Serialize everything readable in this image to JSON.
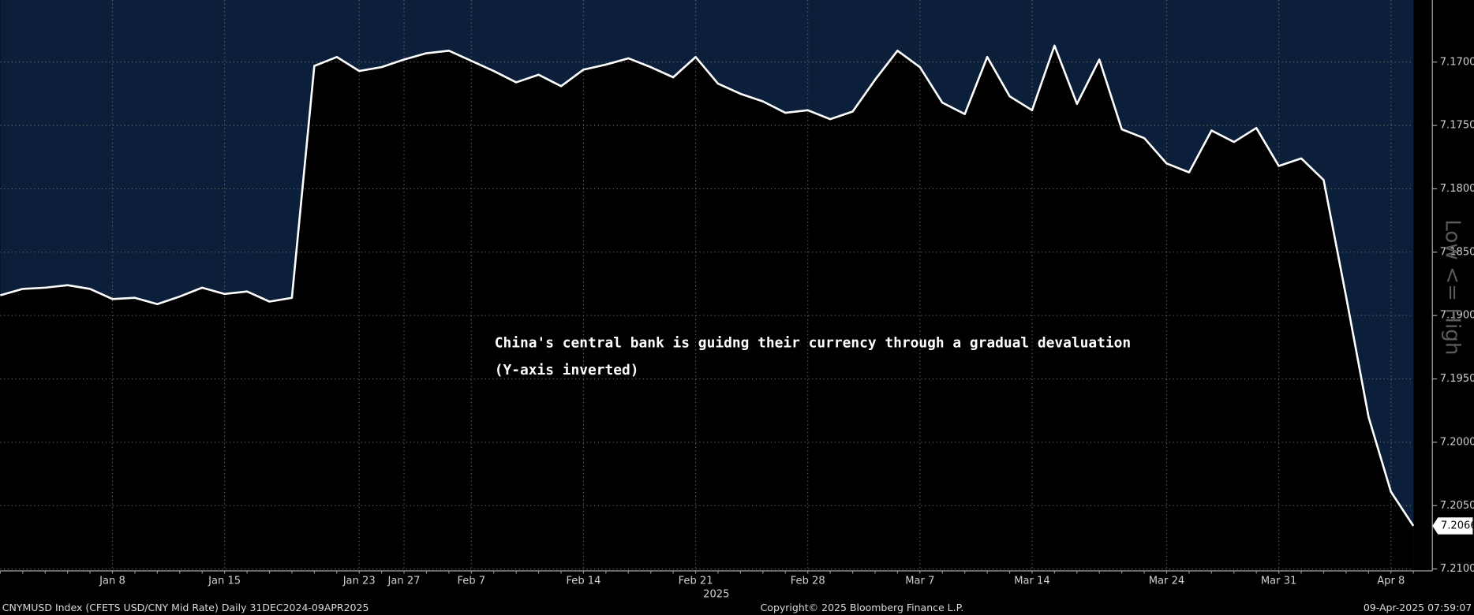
{
  "chart_data": {
    "type": "line",
    "annotations": [
      "China's central bank is guidng their currency through a gradual devaluation",
      "(Y-axis inverted)"
    ],
    "y_label": "Low <= High",
    "x_label": "2025",
    "source": "CNYMUSD Index (CFETS USD/CNY Mid Rate)  Daily 31DEC2024-09APR2025",
    "copyright": "Copyright© 2025 Bloomberg Finance L.P.",
    "timestamp": "09-Apr-2025 07:59:07",
    "categories": [
      null,
      null,
      null,
      null,
      null,
      "Jan 8",
      null,
      null,
      null,
      null,
      "Jan 15",
      null,
      null,
      null,
      null,
      null,
      "Jan 23",
      null,
      "Jan 27",
      null,
      null,
      "Feb 7",
      null,
      null,
      null,
      null,
      "Feb 14",
      null,
      null,
      null,
      null,
      "Feb 21",
      null,
      null,
      null,
      null,
      "Feb 28",
      null,
      null,
      null,
      null,
      "Mar 7",
      null,
      null,
      null,
      null,
      "Mar 14",
      null,
      null,
      null,
      null,
      null,
      "Mar 24",
      null,
      null,
      null,
      null,
      "Mar 31",
      null,
      null,
      null,
      null,
      "Apr 8",
      null
    ],
    "values": [
      7.1884,
      7.1879,
      7.1878,
      7.1876,
      7.1879,
      7.1887,
      7.1886,
      7.1891,
      7.1885,
      7.1878,
      7.1883,
      7.1881,
      7.1889,
      7.1886,
      7.1703,
      7.1696,
      7.1707,
      7.1704,
      7.1698,
      7.1693,
      7.1691,
      7.1699,
      7.1707,
      7.1716,
      7.171,
      7.1719,
      7.1706,
      7.1702,
      7.1697,
      7.1704,
      7.1712,
      7.1696,
      7.1717,
      7.1725,
      7.1731,
      7.174,
      7.1738,
      7.1745,
      7.1739,
      7.1714,
      7.1691,
      7.1704,
      7.1732,
      7.1741,
      7.1696,
      7.1727,
      7.1738,
      7.1687,
      7.1733,
      7.1698,
      7.1753,
      7.176,
      7.178,
      7.1787,
      7.1754,
      7.1763,
      7.1752,
      7.1782,
      7.1776,
      7.1793,
      7.1885,
      7.198,
      7.2039,
      7.2066
    ],
    "color": "#ffffff",
    "area_above_color": "#0b1f3a",
    "area_below_color": "#000000",
    "ylim": [
      7.1651,
      7.21
    ],
    "y_inverted": true,
    "y_axis_side": "right",
    "yticks": [
      {
        "value": 7.17,
        "label": "7.1700"
      },
      {
        "value": 7.175,
        "label": "7.1750"
      },
      {
        "value": 7.18,
        "label": "7.1800"
      },
      {
        "value": 7.185,
        "label": "7.1850"
      },
      {
        "value": 7.19,
        "label": "7.1900"
      },
      {
        "value": 7.195,
        "label": "7.1950"
      },
      {
        "value": 7.2,
        "label": "7.2000"
      },
      {
        "value": 7.205,
        "label": "7.2050"
      },
      {
        "value": 7.21,
        "label": "7.2100"
      }
    ],
    "grid": true
  }
}
